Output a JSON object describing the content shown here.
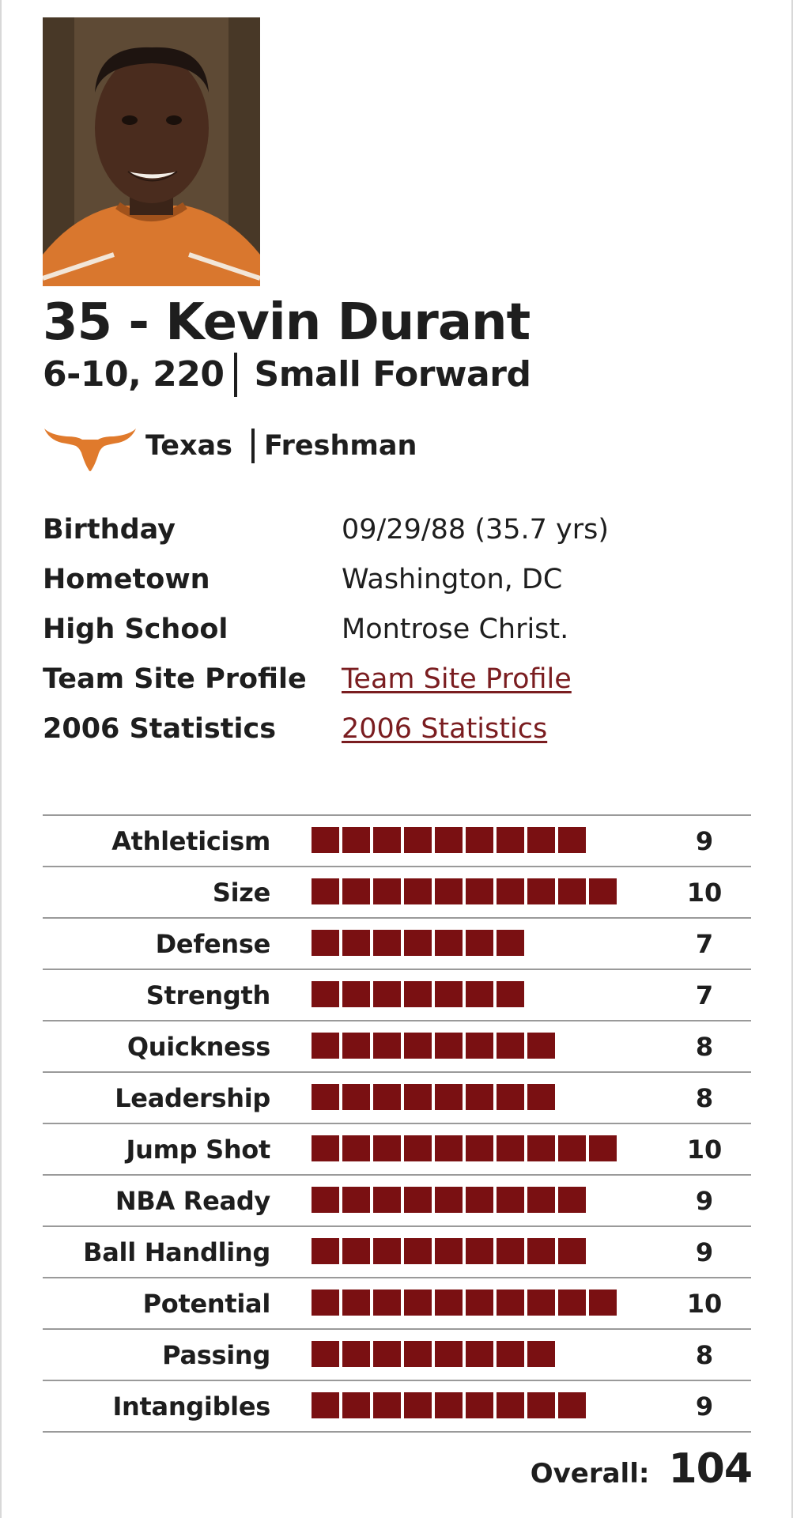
{
  "player": {
    "name_line": "35 - Kevin Durant",
    "measurements": "6-10, 220",
    "position": "Small Forward",
    "school": "Texas",
    "class_year": "Freshman"
  },
  "icons": {
    "photo": "player-photo",
    "logo": "longhorn-logo-icon"
  },
  "colors": {
    "accent": "#7a1012",
    "link": "#7a1d20",
    "logo": "#e07a2c",
    "text": "#1e1e1e"
  },
  "info": [
    {
      "label": "Birthday",
      "value": "09/29/88 (35.7 yrs)"
    },
    {
      "label": "Hometown",
      "value": "Washington, DC"
    },
    {
      "label": "High School",
      "value": "Montrose Christ."
    },
    {
      "label": "Team Site Profile",
      "value": "Team Site Profile"
    },
    {
      "label": "2006 Statistics",
      "value": "2006 Statistics"
    }
  ],
  "ratings": [
    {
      "label": "Athleticism",
      "score": 9,
      "display": "9"
    },
    {
      "label": "Size",
      "score": 10,
      "display": "10"
    },
    {
      "label": "Defense",
      "score": 7,
      "display": "7"
    },
    {
      "label": "Strength",
      "score": 7,
      "display": "7"
    },
    {
      "label": "Quickness",
      "score": 8,
      "display": "8"
    },
    {
      "label": "Leadership",
      "score": 8,
      "display": "8"
    },
    {
      "label": "Jump Shot",
      "score": 10,
      "display": "10"
    },
    {
      "label": "NBA Ready",
      "score": 9,
      "display": "9"
    },
    {
      "label": "Ball Handling",
      "score": 9,
      "display": "9"
    },
    {
      "label": "Potential",
      "score": 10,
      "display": "10"
    },
    {
      "label": "Passing",
      "score": 8,
      "display": "8"
    },
    {
      "label": "Intangibles",
      "score": 9,
      "display": "9"
    }
  ],
  "overall": {
    "label": "Overall:",
    "value": "104"
  }
}
